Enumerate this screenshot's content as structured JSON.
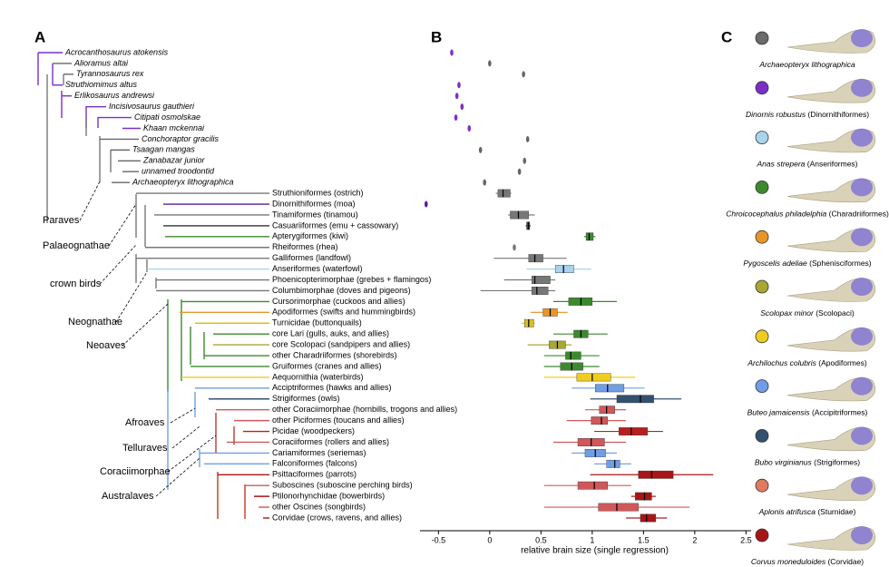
{
  "panel_labels": [
    "A",
    "B",
    "C"
  ],
  "tree": {
    "clades": [
      "Paraves",
      "Palaeognathae",
      "crown birds",
      "Neognathae",
      "Neoaves",
      "Afroaves",
      "Telluraves",
      "Coraciimorphae",
      "Australaves"
    ]
  },
  "chart_data": {
    "type": "box",
    "xlabel": "relative brain size (single regression)",
    "xlim": [
      -0.68,
      2.55
    ],
    "xticks": [
      -0.5,
      0,
      0.5,
      1,
      1.5,
      2,
      2.5
    ],
    "categories": [
      "Acrocanthosaurus atokensis",
      "Alioramus altai",
      "Tyrannosaurus rex",
      "Struthiomimus altus",
      "Erlikosaurus andrewsi",
      "Incisivosaurus gauthieri",
      "Citipati osmolskae",
      "Khaan mckennai",
      "Conchoraptor gracilis",
      "Tsaagan mangas",
      "Zanabazar junior",
      "unnamed troodontid",
      "Archaeopteryx lithographica",
      "Struthioniformes (ostrich)",
      "Dinornithiformes (moa)",
      "Tinamiformes (tinamou)",
      "Casuariiformes (emu + cassowary)",
      "Apterygiformes (kiwi)",
      "Rheiformes (rhea)",
      "Galliformes (landfowl)",
      "Anseriformes (waterfowl)",
      "Phoenicopterimorphae (grebes + flamingos)",
      "Columbimorphae (doves and pigeons)",
      "Cursorimorphae (cuckoos and allies)",
      "Apodiformes (swifts and hummingbirds)",
      "Turnicidae (buttonquails)",
      "core Lari (gulls, auks, and allies)",
      "core Scolopaci (sandpipers and allies)",
      "other Charadriiformes (shorebirds)",
      "Gruiformes (cranes and allies)",
      "Aequornithia (waterbirds)",
      "Acciptriformes (hawks and allies)",
      "Strigiformes (owls)",
      "other Coraciimorphae (hornbills, trogons and allies)",
      "other Piciformes (toucans and allies)",
      "Picidae (woodpeckers)",
      "Coraciiformes (rollers and allies)",
      "Cariamiformes (seriemas)",
      "Falconiformes (falcons)",
      "Psittaciformes (parrots)",
      "Suboscines (suboscine perching birds)",
      "Ptilonorhynchidae (bowerbirds)",
      "other Oscines (songbirds)",
      "Corvidae (crows, ravens, and allies)"
    ],
    "boxes": [
      {
        "value": -0.37
      },
      {
        "value": 0.0
      },
      {
        "value": 0.33
      },
      {
        "value": -0.3
      },
      {
        "value": -0.32
      },
      {
        "value": -0.27
      },
      {
        "value": -0.33
      },
      {
        "value": -0.2
      },
      {
        "value": 0.37
      },
      {
        "value": -0.09
      },
      {
        "value": 0.34
      },
      {
        "value": 0.29
      },
      {
        "value": -0.05
      },
      {
        "whislo": 0.06,
        "q1": 0.08,
        "med": 0.13,
        "q3": 0.2,
        "whishi": 0.21
      },
      {
        "value": -0.62
      },
      {
        "whislo": 0.18,
        "q1": 0.2,
        "med": 0.28,
        "q3": 0.38,
        "whishi": 0.44
      },
      {
        "whislo": 0.35,
        "q1": 0.36,
        "med": 0.38,
        "q3": 0.39,
        "whishi": 0.4
      },
      {
        "whislo": 0.92,
        "q1": 0.94,
        "med": 0.97,
        "q3": 1.01,
        "whishi": 1.03
      },
      {
        "value": 0.24
      },
      {
        "whislo": 0.04,
        "q1": 0.38,
        "med": 0.44,
        "q3": 0.52,
        "whishi": 0.75
      },
      {
        "whislo": 0.36,
        "q1": 0.64,
        "med": 0.72,
        "q3": 0.82,
        "whishi": 0.99
      },
      {
        "whislo": 0.14,
        "q1": 0.41,
        "med": 0.44,
        "q3": 0.59,
        "whishi": 0.64
      },
      {
        "whislo": -0.09,
        "q1": 0.41,
        "med": 0.46,
        "q3": 0.57,
        "whishi": 0.64
      },
      {
        "whislo": 0.62,
        "q1": 0.77,
        "med": 0.89,
        "q3": 1.0,
        "whishi": 1.24
      },
      {
        "whislo": 0.4,
        "q1": 0.52,
        "med": 0.59,
        "q3": 0.66,
        "whishi": 0.76
      },
      {
        "whislo": 0.31,
        "q1": 0.34,
        "med": 0.38,
        "q3": 0.43,
        "whishi": 0.44
      },
      {
        "whislo": 0.62,
        "q1": 0.82,
        "med": 0.89,
        "q3": 0.96,
        "whishi": 1.15
      },
      {
        "whislo": 0.37,
        "q1": 0.58,
        "med": 0.66,
        "q3": 0.74,
        "whishi": 0.8
      },
      {
        "whislo": 0.53,
        "q1": 0.74,
        "med": 0.79,
        "q3": 0.89,
        "whishi": 1.07
      },
      {
        "whislo": 0.53,
        "q1": 0.69,
        "med": 0.8,
        "q3": 0.91,
        "whishi": 1.07
      },
      {
        "whislo": 0.53,
        "q1": 0.85,
        "med": 1.0,
        "q3": 1.18,
        "whishi": 1.42
      },
      {
        "whislo": 0.8,
        "q1": 1.03,
        "med": 1.15,
        "q3": 1.31,
        "whishi": 1.51
      },
      {
        "whislo": 0.98,
        "q1": 1.24,
        "med": 1.47,
        "q3": 1.6,
        "whishi": 1.87
      },
      {
        "whislo": 0.93,
        "q1": 1.07,
        "med": 1.14,
        "q3": 1.22,
        "whishi": 1.33
      },
      {
        "whislo": 0.75,
        "q1": 0.99,
        "med": 1.09,
        "q3": 1.15,
        "whishi": 1.33
      },
      {
        "whislo": 1.02,
        "q1": 1.26,
        "med": 1.38,
        "q3": 1.54,
        "whishi": 1.69
      },
      {
        "whislo": 0.62,
        "q1": 0.86,
        "med": 0.99,
        "q3": 1.12,
        "whishi": 1.33
      },
      {
        "whislo": 0.8,
        "q1": 0.93,
        "med": 1.03,
        "q3": 1.13,
        "whishi": 1.24
      },
      {
        "whislo": 1.02,
        "q1": 1.14,
        "med": 1.22,
        "q3": 1.27,
        "whishi": 1.38
      },
      {
        "whislo": 0.98,
        "q1": 1.45,
        "med": 1.58,
        "q3": 1.79,
        "whishi": 2.18
      },
      {
        "whislo": 0.53,
        "q1": 0.86,
        "med": 1.02,
        "q3": 1.15,
        "whishi": 1.38
      },
      {
        "whislo": 1.38,
        "q1": 1.42,
        "med": 1.51,
        "q3": 1.58,
        "whishi": 1.62
      },
      {
        "whislo": 0.53,
        "q1": 1.06,
        "med": 1.24,
        "q3": 1.45,
        "whishi": 1.95
      },
      {
        "whislo": 1.33,
        "q1": 1.47,
        "med": 1.53,
        "q3": 1.62,
        "whishi": 1.73
      }
    ],
    "colors": [
      "#7b2fc9",
      "#666666",
      "#666666",
      "#7b2fc9",
      "#7b2fc9",
      "#7b2fc9",
      "#7b2fc9",
      "#7b2fc9",
      "#666666",
      "#666666",
      "#666666",
      "#666666",
      "#666666",
      "#777777",
      "#5a1a9a",
      "#777777",
      "#444444",
      "#3c8a2e",
      "#777777",
      "#777777",
      "#a9d3ee",
      "#777777",
      "#777777",
      "#3c8a2e",
      "#e8962a",
      "#d9c021",
      "#3c8a2e",
      "#a8a830",
      "#3c8a2e",
      "#3c8a2e",
      "#f0cc20",
      "#6f9ee6",
      "#34506f",
      "#d0585a",
      "#d0585a",
      "#b82020",
      "#d0585a",
      "#6f9ee6",
      "#6f9ee6",
      "#a81515",
      "#d0585a",
      "#a81515",
      "#d0585a",
      "#a81515"
    ],
    "label_colors": [
      "#000",
      "#000",
      "#000",
      "#000",
      "#000",
      "#000",
      "#000",
      "#000",
      "#000",
      "#000",
      "#000",
      "#000",
      "#000",
      "#000",
      "#000",
      "#000",
      "#000",
      "#000",
      "#000",
      "#000",
      "#000",
      "#000",
      "#000",
      "#000",
      "#000",
      "#000",
      "#000",
      "#000",
      "#000",
      "#000",
      "#000",
      "#d42020",
      "#d42020",
      "#000",
      "#000",
      "#000",
      "#000",
      "#d42020",
      "#d42020",
      "#000",
      "#000",
      "#000",
      "#000",
      "#000"
    ]
  },
  "specimens": [
    {
      "species": "Archaeopteryx lithographica",
      "color": "#6b6b6b"
    },
    {
      "species": "Dinornis robustus",
      "group": "(Dinornithiformes)",
      "color": "#7b2fc9"
    },
    {
      "species": "Anas strepera",
      "group": "(Anseriformes)",
      "color": "#a9d3ee"
    },
    {
      "species": "Chroicocephalus philadelphia",
      "group": "(Charadriiformes)",
      "color": "#3c8a2e"
    },
    {
      "species": "Pygoscelis adeliae",
      "group": "(Sphenisciformes)",
      "color": "#e8962a"
    },
    {
      "species": "Scolopax minor",
      "group": "(Scolopaci)",
      "color": "#a8a830"
    },
    {
      "species": "Archilochus colubris",
      "group": "(Apodiformes)",
      "color": "#f0cc20"
    },
    {
      "species": "Buteo jamaicensis",
      "group": "(Accipitriformes)",
      "color": "#6f9ee6"
    },
    {
      "species": "Bubo virginianus",
      "group": "(Strigiformes)",
      "color": "#34506f"
    },
    {
      "species": "Aplonis atrifusca",
      "group": "(Sturnidae)",
      "color": "#e07a5f"
    },
    {
      "species": "Corvus moneduloides",
      "group": "(Corvidae)",
      "color": "#a81515"
    }
  ]
}
